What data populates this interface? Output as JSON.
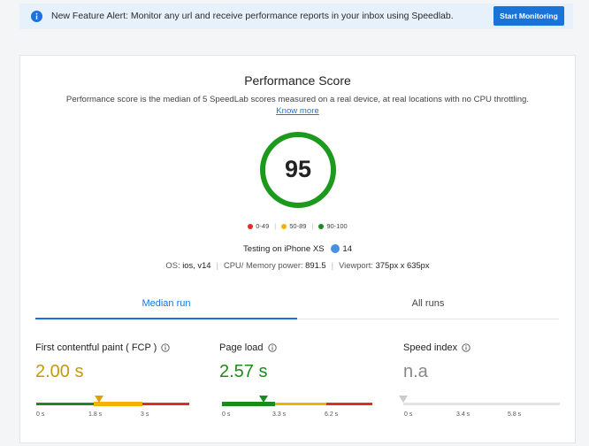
{
  "banner": {
    "message": "New Feature Alert: Monitor any url and receive performance reports in your inbox using Speedlab.",
    "button": "Start Monitoring"
  },
  "card": {
    "title": "Performance Score",
    "description": "Performance score is the median of 5 SpeedLab scores measured on a real device, at real locations with no CPU throttling.",
    "link": "Know more",
    "score": 95,
    "legend": [
      "0-49",
      "50-89",
      "90-100"
    ],
    "device": {
      "label": "Testing on iPhone XS",
      "version": "14"
    },
    "specs": [
      {
        "label": "OS:",
        "value": "ios, v14"
      },
      {
        "label": "CPU/ Memory power:",
        "value": "891.5"
      },
      {
        "label": "Viewport:",
        "value": "375px x 635px"
      }
    ],
    "tabs": [
      "Median run",
      "All runs"
    ],
    "metrics": [
      {
        "label": "First contentful paint ( FCP )",
        "value": "2.00 s",
        "ticks": [
          "0 s",
          "1.8 s",
          "3 s"
        ]
      },
      {
        "label": "Page load",
        "value": "2.57 s",
        "ticks": [
          "0 s",
          "3.3 s",
          "6.2 s"
        ]
      },
      {
        "label": "Speed index",
        "value": "n.a",
        "ticks": [
          "0 s",
          "3.4 s",
          "5.8 s"
        ]
      }
    ]
  }
}
